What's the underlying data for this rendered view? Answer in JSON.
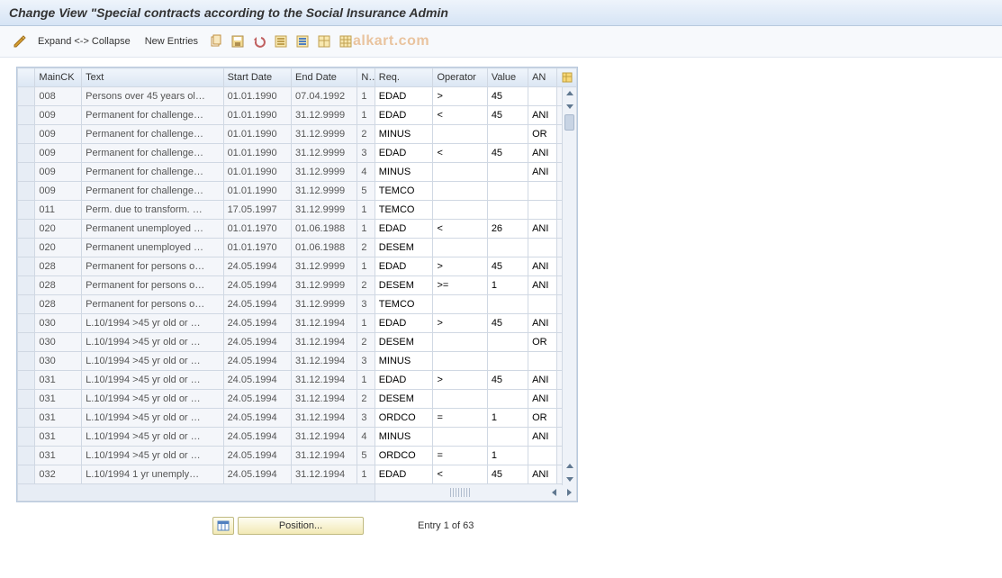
{
  "header": {
    "title": "Change View \"Special contracts according to the Social Insurance Admin"
  },
  "toolbar": {
    "expand_collapse": "Expand <-> Collapse",
    "new_entries": "New Entries",
    "watermark": "alkart.com"
  },
  "table": {
    "columns": [
      "",
      "MainCK",
      "Text",
      "Start Date",
      "End Date",
      "N..",
      "Req.",
      "Operator",
      "Value",
      "AN"
    ],
    "rows": [
      {
        "ck": "008",
        "text": "Persons over 45 years ol…",
        "start": "01.01.1990",
        "end": "07.04.1992",
        "n": "1",
        "req": "EDAD",
        "op": ">",
        "val": "45",
        "an": ""
      },
      {
        "ck": "009",
        "text": "Permanent for challenge…",
        "start": "01.01.1990",
        "end": "31.12.9999",
        "n": "1",
        "req": "EDAD",
        "op": "<",
        "val": "45",
        "an": "ANI"
      },
      {
        "ck": "009",
        "text": "Permanent for challenge…",
        "start": "01.01.1990",
        "end": "31.12.9999",
        "n": "2",
        "req": "MINUS",
        "op": "",
        "val": "",
        "an": "OR"
      },
      {
        "ck": "009",
        "text": "Permanent for challenge…",
        "start": "01.01.1990",
        "end": "31.12.9999",
        "n": "3",
        "req": "EDAD",
        "op": "<",
        "val": "45",
        "an": "ANI"
      },
      {
        "ck": "009",
        "text": "Permanent for challenge…",
        "start": "01.01.1990",
        "end": "31.12.9999",
        "n": "4",
        "req": "MINUS",
        "op": "",
        "val": "",
        "an": "ANI"
      },
      {
        "ck": "009",
        "text": "Permanent for challenge…",
        "start": "01.01.1990",
        "end": "31.12.9999",
        "n": "5",
        "req": "TEMCO",
        "op": "",
        "val": "",
        "an": ""
      },
      {
        "ck": "011",
        "text": "Perm. due to transform. …",
        "start": "17.05.1997",
        "end": "31.12.9999",
        "n": "1",
        "req": "TEMCO",
        "op": "",
        "val": "",
        "an": ""
      },
      {
        "ck": "020",
        "text": "Permanent unemployed …",
        "start": "01.01.1970",
        "end": "01.06.1988",
        "n": "1",
        "req": "EDAD",
        "op": "<",
        "val": "26",
        "an": "ANI"
      },
      {
        "ck": "020",
        "text": "Permanent unemployed …",
        "start": "01.01.1970",
        "end": "01.06.1988",
        "n": "2",
        "req": "DESEM",
        "op": "",
        "val": "",
        "an": ""
      },
      {
        "ck": "028",
        "text": "Permanent for persons o…",
        "start": "24.05.1994",
        "end": "31.12.9999",
        "n": "1",
        "req": "EDAD",
        "op": ">",
        "val": "45",
        "an": "ANI"
      },
      {
        "ck": "028",
        "text": "Permanent for persons o…",
        "start": "24.05.1994",
        "end": "31.12.9999",
        "n": "2",
        "req": "DESEM",
        "op": ">=",
        "val": "1",
        "an": "ANI"
      },
      {
        "ck": "028",
        "text": "Permanent for persons o…",
        "start": "24.05.1994",
        "end": "31.12.9999",
        "n": "3",
        "req": "TEMCO",
        "op": "",
        "val": "",
        "an": ""
      },
      {
        "ck": "030",
        "text": "L.10/1994 >45 yr old or …",
        "start": "24.05.1994",
        "end": "31.12.1994",
        "n": "1",
        "req": "EDAD",
        "op": ">",
        "val": "45",
        "an": "ANI"
      },
      {
        "ck": "030",
        "text": "L.10/1994 >45 yr old or …",
        "start": "24.05.1994",
        "end": "31.12.1994",
        "n": "2",
        "req": "DESEM",
        "op": "",
        "val": "",
        "an": "OR"
      },
      {
        "ck": "030",
        "text": "L.10/1994 >45 yr old or …",
        "start": "24.05.1994",
        "end": "31.12.1994",
        "n": "3",
        "req": "MINUS",
        "op": "",
        "val": "",
        "an": ""
      },
      {
        "ck": "031",
        "text": "L.10/1994 >45 yr old or …",
        "start": "24.05.1994",
        "end": "31.12.1994",
        "n": "1",
        "req": "EDAD",
        "op": ">",
        "val": "45",
        "an": "ANI"
      },
      {
        "ck": "031",
        "text": "L.10/1994 >45 yr old or …",
        "start": "24.05.1994",
        "end": "31.12.1994",
        "n": "2",
        "req": "DESEM",
        "op": "",
        "val": "",
        "an": "ANI"
      },
      {
        "ck": "031",
        "text": "L.10/1994 >45 yr old or …",
        "start": "24.05.1994",
        "end": "31.12.1994",
        "n": "3",
        "req": "ORDCO",
        "op": "=",
        "val": "1",
        "an": "OR"
      },
      {
        "ck": "031",
        "text": "L.10/1994 >45 yr old or …",
        "start": "24.05.1994",
        "end": "31.12.1994",
        "n": "4",
        "req": "MINUS",
        "op": "",
        "val": "",
        "an": "ANI"
      },
      {
        "ck": "031",
        "text": "L.10/1994 >45 yr old or …",
        "start": "24.05.1994",
        "end": "31.12.1994",
        "n": "5",
        "req": "ORDCO",
        "op": "=",
        "val": "1",
        "an": ""
      },
      {
        "ck": "032",
        "text": "L.10/1994 1 yr unemply…",
        "start": "24.05.1994",
        "end": "31.12.1994",
        "n": "1",
        "req": "EDAD",
        "op": "<",
        "val": "45",
        "an": "ANI"
      }
    ]
  },
  "footer": {
    "position_label": "Position...",
    "entry_text": "Entry 1 of 63"
  },
  "colors": {
    "header_bg_top": "#eef4fb",
    "header_bg_bot": "#d6e4f5",
    "border": "#b8c9de",
    "btn_bg_top": "#fefdf2",
    "btn_bg_bot": "#f2e9b5",
    "btn_border": "#c0ba80",
    "watermark": "#e0a060"
  }
}
